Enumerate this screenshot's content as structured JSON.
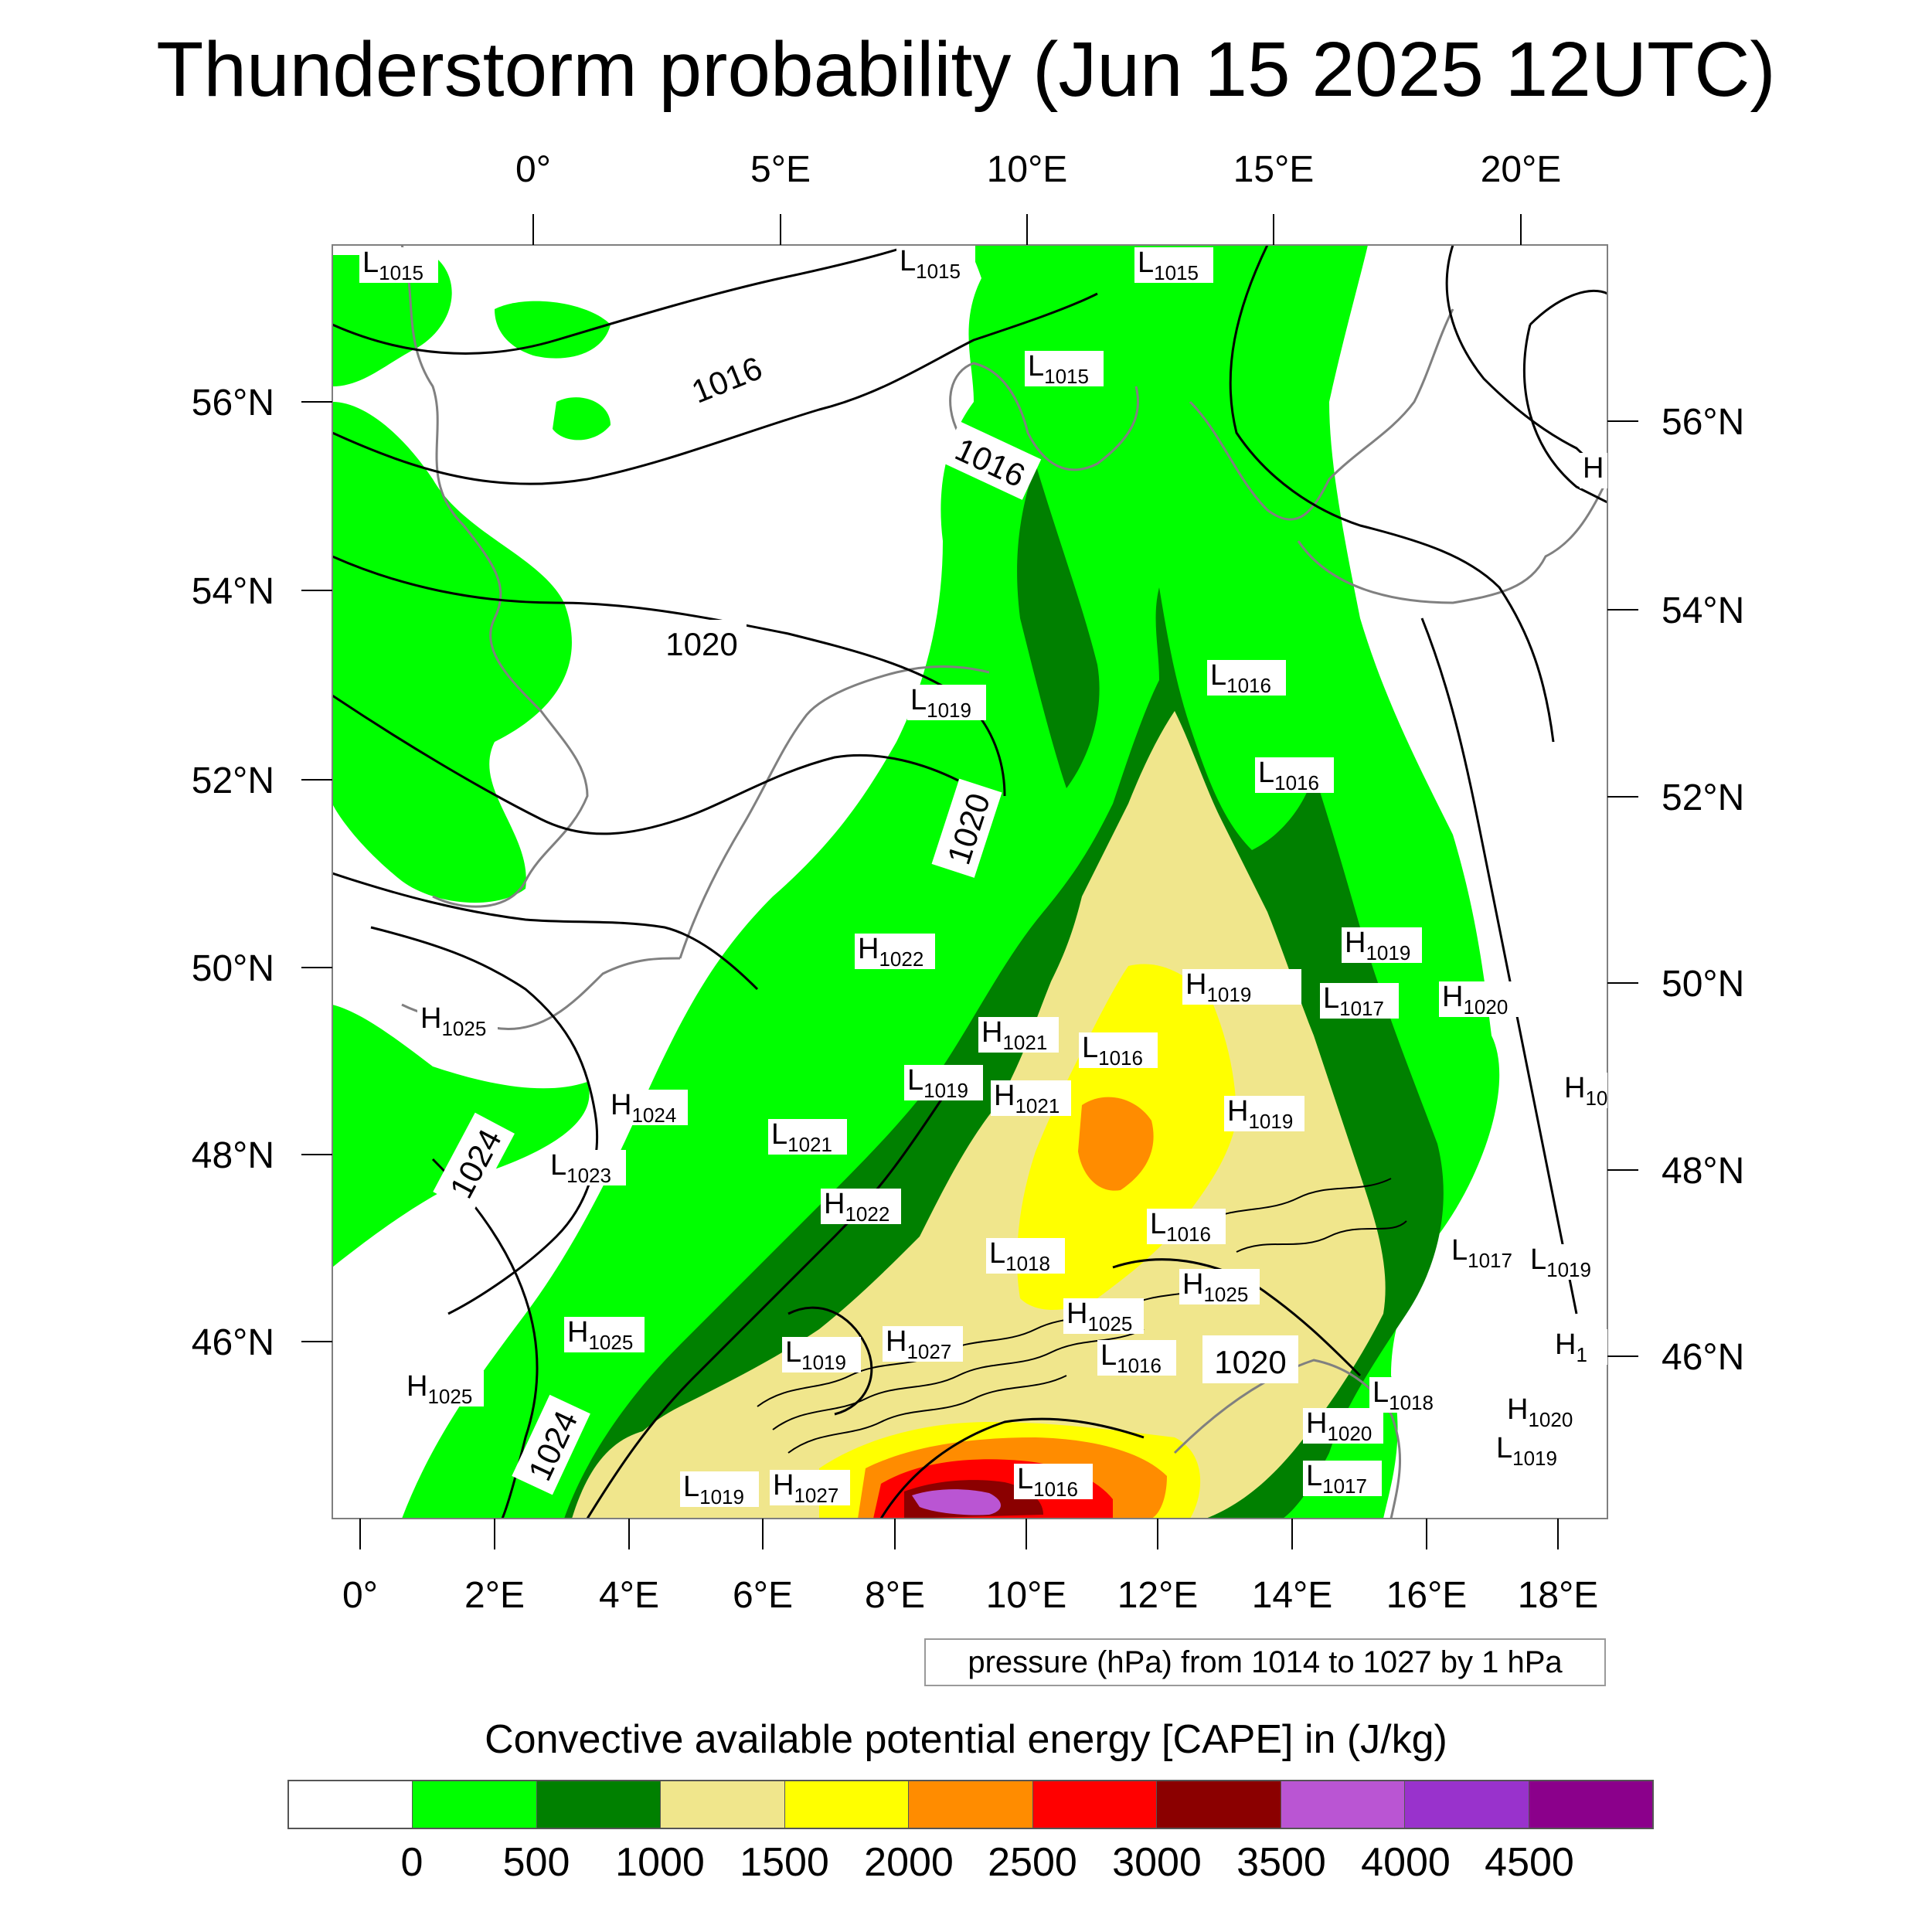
{
  "title": "Thunderstorm probability (Jun 15 2025 12UTC)",
  "map": {
    "background_color": "#ffffff",
    "border_color": "#7f7f7f",
    "coast_color": "#808080",
    "isobar_color": "#000000",
    "top_lon_ticks": [
      "0°",
      "5°E",
      "10°E",
      "15°E",
      "20°E"
    ],
    "bottom_lon_ticks": [
      "0°",
      "2°E",
      "4°E",
      "6°E",
      "8°E",
      "10°E",
      "12°E",
      "14°E",
      "16°E",
      "18°E"
    ],
    "left_lat_ticks": [
      "56°N",
      "54°N",
      "52°N",
      "50°N",
      "48°N",
      "46°N"
    ],
    "right_lat_ticks": [
      "56°N",
      "54°N",
      "52°N",
      "50°N",
      "48°N",
      "46°N"
    ],
    "isobar_labels": [
      "1016",
      "1016",
      "1020",
      "1020",
      "1024",
      "1024",
      "1020"
    ],
    "pressure_centers": [
      {
        "type": "L",
        "value": "1015"
      },
      {
        "type": "L",
        "value": "1015"
      },
      {
        "type": "L",
        "value": "1015"
      },
      {
        "type": "L",
        "value": "1015"
      },
      {
        "type": "H",
        "value": ""
      },
      {
        "type": "L",
        "value": "1019"
      },
      {
        "type": "L",
        "value": "1016"
      },
      {
        "type": "L",
        "value": "1016"
      },
      {
        "type": "H",
        "value": "1022"
      },
      {
        "type": "H",
        "value": "1019"
      },
      {
        "type": "H",
        "value": "1019"
      },
      {
        "type": "L",
        "value": "1017"
      },
      {
        "type": "H",
        "value": "1020"
      },
      {
        "type": "H",
        "value": "1025"
      },
      {
        "type": "H",
        "value": "1021"
      },
      {
        "type": "L",
        "value": "1016"
      },
      {
        "type": "L",
        "value": "1019"
      },
      {
        "type": "H",
        "value": "1021"
      },
      {
        "type": "H",
        "value": "1024"
      },
      {
        "type": "L",
        "value": "1021"
      },
      {
        "type": "L",
        "value": "1023"
      },
      {
        "type": "H",
        "value": "1019"
      },
      {
        "type": "H",
        "value": "1022"
      },
      {
        "type": "L",
        "value": "1016"
      },
      {
        "type": "L",
        "value": "1018"
      },
      {
        "type": "L",
        "value": "1017"
      },
      {
        "type": "L",
        "value": "1019"
      },
      {
        "type": "H",
        "value": "1025"
      },
      {
        "type": "H",
        "value": "1025"
      },
      {
        "type": "H",
        "value": "1025"
      },
      {
        "type": "L",
        "value": "1019"
      },
      {
        "type": "H",
        "value": "1027"
      },
      {
        "type": "L",
        "value": "1016"
      },
      {
        "type": "H",
        "value": "1025"
      },
      {
        "type": "L",
        "value": "1018"
      },
      {
        "type": "H",
        "value": "1020"
      },
      {
        "type": "L",
        "value": "1017"
      },
      {
        "type": "H",
        "value": "1020"
      },
      {
        "type": "L",
        "value": "1019"
      },
      {
        "type": "L",
        "value": "1019"
      },
      {
        "type": "H",
        "value": "1027"
      },
      {
        "type": "L",
        "value": "1016"
      },
      {
        "type": "H",
        "value": "1"
      },
      {
        "type": "H",
        "value": "10"
      }
    ]
  },
  "info_box": "pressure (hPa) from 1014 to 1027 by 1 hPa",
  "colorbar": {
    "title": "Convective available potential energy [CAPE] in (J/kg)",
    "colors": [
      "#ffffff",
      "#00ff00",
      "#008000",
      "#f0e68c",
      "#ffff00",
      "#ff8c00",
      "#ff0000",
      "#8b0000",
      "#ba55d3",
      "#9932cc",
      "#8b008b"
    ],
    "labels": [
      "0",
      "500",
      "1000",
      "1500",
      "2000",
      "2500",
      "3000",
      "3500",
      "4000",
      "4500"
    ]
  }
}
